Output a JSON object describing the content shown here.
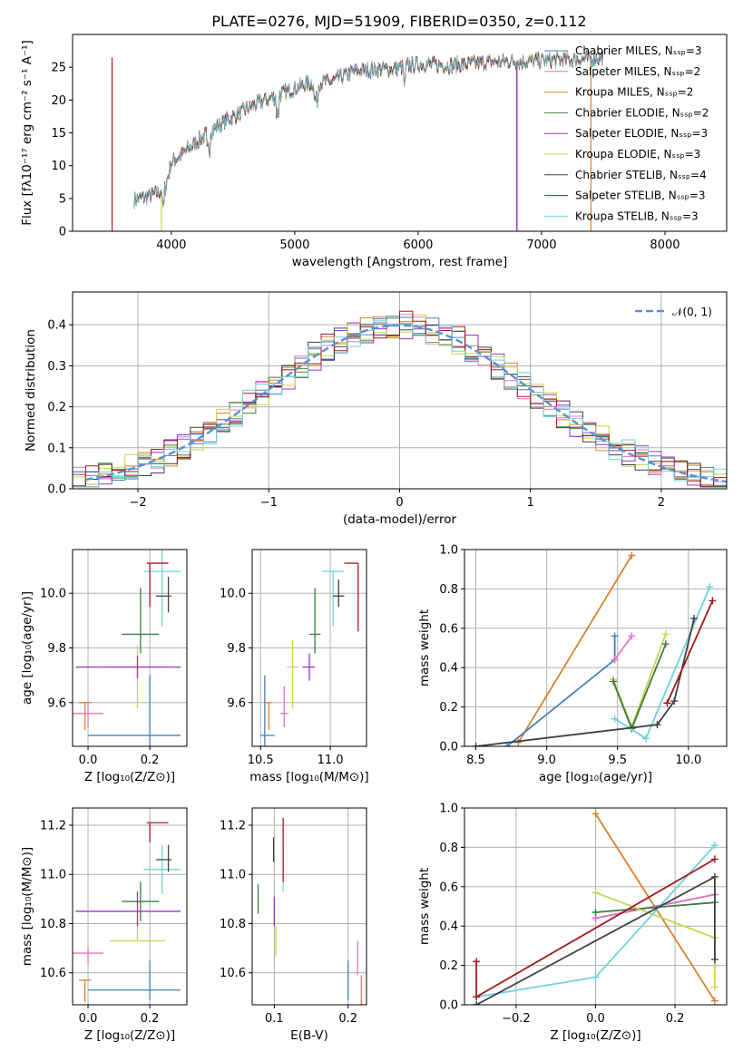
{
  "title": "PLATE=0276, MJD=51909, FIBERID=0350, z=0.112",
  "chart_data": [
    {
      "id": "spectrum",
      "type": "line",
      "xlabel": "wavelength [Angstrom, rest frame]",
      "ylabel": "Flux [fλ10⁻¹⁷ erg cm⁻² s⁻¹ A⁻¹]",
      "xlim": [
        3200,
        8500
      ],
      "ylim": [
        0,
        30
      ],
      "xticks": [
        4000,
        5000,
        6000,
        7000,
        8000
      ],
      "yticks": [
        0,
        5,
        10,
        15,
        20,
        25
      ],
      "grid": false,
      "legend_position": "top-right",
      "continuum_x": [
        3700,
        3850,
        3950,
        4000,
        4100,
        4300,
        4500,
        4700,
        4900,
        5100,
        5300,
        5500,
        5800,
        6000,
        6300,
        6600,
        7000,
        7300,
        7500
      ],
      "continuum_y": [
        4.8,
        5.5,
        6.5,
        10.5,
        12.0,
        15.0,
        17.5,
        19.5,
        21.0,
        22.5,
        22.8,
        24.5,
        24.8,
        25.5,
        25.3,
        25.8,
        26.0,
        26.2,
        26.5
      ],
      "series": [
        {
          "name": "Chabrier MILES, N_SSP=3",
          "color": "#4682b4",
          "edge_drop": null
        },
        {
          "name": "Salpeter MILES, N_SSP=2",
          "color": "#e377c2",
          "edge_drop": null
        },
        {
          "name": "Kroupa MILES, N_SSP=2",
          "color": "#d9822b",
          "edge_drop": 7400
        },
        {
          "name": "Chabrier ELODIE, N_SSP=2",
          "color": "#3a7d44",
          "edge_drop": 6800
        },
        {
          "name": "Salpeter ELODIE, N_SSP=3",
          "color": "#9932cc",
          "edge_drop": 6800
        },
        {
          "name": "Kroupa ELODIE, N_SSP=3",
          "color": "#c8d44e",
          "edge_drop": 3920
        },
        {
          "name": "Chabrier STELIB, N_SSP=4",
          "color": "#404040",
          "edge_drop": null
        },
        {
          "name": "Salpeter STELIB, N_SSP=3",
          "color": "#a31b1b",
          "edge_drop": 3520
        },
        {
          "name": "Kroupa STELIB, N_SSP=3",
          "color": "#6fd2dc",
          "edge_drop": null
        }
      ]
    },
    {
      "id": "residuals",
      "type": "histogram",
      "xlabel": "(data-model)/error",
      "ylabel": "Normed distribution",
      "xlim": [
        -2.5,
        2.5
      ],
      "ylim": [
        0,
        0.48
      ],
      "xticks": [
        -2,
        -1,
        0,
        1,
        2
      ],
      "yticks": [
        0.0,
        0.1,
        0.2,
        0.3,
        0.4
      ],
      "grid": true,
      "legend_position": "top-right",
      "reference_curve": {
        "name": "𝒩(0, 1)",
        "mean": 0,
        "sigma": 1,
        "color": "#5a8fd6"
      },
      "series_colors": [
        "#4682b4",
        "#e377c2",
        "#d9822b",
        "#3a7d44",
        "#9932cc",
        "#c8d44e",
        "#404040",
        "#a31b1b",
        "#6fd2dc"
      ]
    },
    {
      "id": "age-vs-Z",
      "type": "errorbar",
      "xlabel": "Z [log₁₀(Z/Z⊙)]",
      "ylabel": "age  [log₁₀(age/yr)]",
      "xlim": [
        -0.05,
        0.32
      ],
      "ylim": [
        9.44,
        10.16
      ],
      "xticks": [
        0.0,
        0.2
      ],
      "yticks": [
        9.6,
        9.8,
        10.0
      ],
      "points": [
        {
          "color": "#d9822b",
          "x": -0.01,
          "xerr": [
            0.02,
            0.02
          ],
          "y": 9.6,
          "yerr": [
            0.1,
            0.0
          ]
        },
        {
          "color": "#e377c2",
          "x": 0.0,
          "xerr": [
            0.05,
            0.05
          ],
          "y": 9.56,
          "yerr": [
            0.05,
            0.04
          ]
        },
        {
          "color": "#4682b4",
          "x": 0.2,
          "xerr": [
            0.2,
            0.1
          ],
          "y": 9.48,
          "yerr": [
            0.05,
            0.22
          ]
        },
        {
          "color": "#c8d44e",
          "x": 0.16,
          "xerr": [
            0.09,
            0.09
          ],
          "y": 9.73,
          "yerr": [
            0.15,
            0.08
          ]
        },
        {
          "color": "#9932cc",
          "x": 0.16,
          "xerr": [
            0.2,
            0.14
          ],
          "y": 9.73,
          "yerr": [
            0.04,
            0.04
          ]
        },
        {
          "color": "#3a7d44",
          "x": 0.17,
          "xerr": [
            0.06,
            0.06
          ],
          "y": 9.85,
          "yerr": [
            0.07,
            0.17
          ]
        },
        {
          "color": "#6fd2dc",
          "x": 0.24,
          "xerr": [
            0.06,
            0.06
          ],
          "y": 10.08,
          "yerr": [
            0.2,
            0.08
          ]
        },
        {
          "color": "#404040",
          "x": 0.26,
          "xerr": [
            0.04,
            0.01
          ],
          "y": 9.99,
          "yerr": [
            0.06,
            0.07
          ]
        },
        {
          "color": "#a31b1b",
          "x": 0.2,
          "xerr": [
            0.01,
            0.06
          ],
          "y": 10.11,
          "yerr": [
            0.16,
            0.0
          ]
        }
      ]
    },
    {
      "id": "age-vs-mass",
      "type": "errorbar",
      "xlabel": "mass [log₁₀(M/M⊙)]",
      "ylabel": "",
      "xlim": [
        10.44,
        11.26
      ],
      "ylim": [
        9.44,
        10.16
      ],
      "xticks": [
        10.5,
        11.0
      ],
      "yticks": [
        9.6,
        9.8,
        10.0
      ],
      "points": [
        {
          "color": "#d9822b",
          "x": 10.56,
          "xerr": [
            0.03,
            0.02
          ],
          "y": 9.6,
          "yerr": [
            0.1,
            0.0
          ]
        },
        {
          "color": "#4682b4",
          "x": 10.53,
          "xerr": [
            0.03,
            0.07
          ],
          "y": 9.48,
          "yerr": [
            0.04,
            0.22
          ]
        },
        {
          "color": "#e377c2",
          "x": 10.67,
          "xerr": [
            0.03,
            0.03
          ],
          "y": 9.56,
          "yerr": [
            0.05,
            0.1
          ]
        },
        {
          "color": "#c8d44e",
          "x": 10.73,
          "xerr": [
            0.04,
            0.04
          ],
          "y": 9.73,
          "yerr": [
            0.15,
            0.1
          ]
        },
        {
          "color": "#9932cc",
          "x": 10.85,
          "xerr": [
            0.05,
            0.04
          ],
          "y": 9.73,
          "yerr": [
            0.05,
            0.05
          ]
        },
        {
          "color": "#3a7d44",
          "x": 10.89,
          "xerr": [
            0.04,
            0.04
          ],
          "y": 9.85,
          "yerr": [
            0.07,
            0.17
          ]
        },
        {
          "color": "#6fd2dc",
          "x": 11.02,
          "xerr": [
            0.08,
            0.08
          ],
          "y": 10.08,
          "yerr": [
            0.2,
            0.0
          ]
        },
        {
          "color": "#404040",
          "x": 11.06,
          "xerr": [
            0.04,
            0.04
          ],
          "y": 9.99,
          "yerr": [
            0.04,
            0.06
          ]
        },
        {
          "color": "#a31b1b",
          "x": 11.2,
          "xerr": [
            0.1,
            0.0
          ],
          "y": 10.11,
          "yerr": [
            0.25,
            0.0
          ]
        }
      ]
    },
    {
      "id": "weight-vs-age",
      "type": "line",
      "xlabel": "age  [log₁₀(age/yr)]",
      "ylabel": "mass weight",
      "xlim": [
        8.42,
        10.27
      ],
      "ylim": [
        0,
        1
      ],
      "xticks": [
        8.5,
        9.0,
        9.5,
        10.0
      ],
      "yticks": [
        0.0,
        0.2,
        0.4,
        0.6,
        0.8,
        1.0
      ],
      "grid": true,
      "series": [
        {
          "color": "#d9822b",
          "x": [
            8.8,
            9.6
          ],
          "y": [
            0.02,
            0.97
          ]
        },
        {
          "color": "#4682b4",
          "x": [
            8.72,
            9.48,
            9.48
          ],
          "y": [
            0.0,
            0.44,
            0.56
          ]
        },
        {
          "color": "#e377c2",
          "x": [
            9.48,
            9.6
          ],
          "y": [
            0.44,
            0.56
          ]
        },
        {
          "color": "#c8d44e",
          "x": [
            9.47,
            9.6,
            9.84
          ],
          "y": [
            0.34,
            0.1,
            0.57
          ]
        },
        {
          "color": "#3a7d44",
          "x": [
            9.47,
            9.6,
            9.84
          ],
          "y": [
            0.33,
            0.09,
            0.52
          ]
        },
        {
          "color": "#6fd2dc",
          "x": [
            9.48,
            9.7,
            10.15
          ],
          "y": [
            0.14,
            0.04,
            0.81
          ]
        },
        {
          "color": "#404040",
          "x": [
            8.5,
            9.78,
            9.9,
            10.04
          ],
          "y": [
            0.0,
            0.11,
            0.23,
            0.65
          ]
        },
        {
          "color": "#a31b1b",
          "x": [
            9.85,
            10.17
          ],
          "y": [
            0.22,
            0.74
          ]
        }
      ]
    },
    {
      "id": "mass-vs-Z",
      "type": "errorbar",
      "xlabel": "Z [log₁₀(Z/Z⊙)]",
      "ylabel": "mass [log₁₀(M/M⊙)]",
      "xlim": [
        -0.05,
        0.32
      ],
      "ylim": [
        10.47,
        11.27
      ],
      "xticks": [
        0.0,
        0.2
      ],
      "yticks": [
        10.6,
        10.8,
        11.0,
        11.2
      ],
      "points": [
        {
          "color": "#d9822b",
          "x": -0.01,
          "xerr": [
            0.02,
            0.02
          ],
          "y": 10.57,
          "yerr": [
            0.09,
            0.0
          ]
        },
        {
          "color": "#e377c2",
          "x": 0.0,
          "xerr": [
            0.05,
            0.05
          ],
          "y": 10.68,
          "yerr": [
            0.04,
            0.02
          ]
        },
        {
          "color": "#4682b4",
          "x": 0.2,
          "xerr": [
            0.2,
            0.1
          ],
          "y": 10.53,
          "yerr": [
            0.04,
            0.12
          ]
        },
        {
          "color": "#c8d44e",
          "x": 0.16,
          "xerr": [
            0.09,
            0.09
          ],
          "y": 10.73,
          "yerr": [
            0.0,
            0.08
          ]
        },
        {
          "color": "#9932cc",
          "x": 0.16,
          "xerr": [
            0.2,
            0.14
          ],
          "y": 10.85,
          "yerr": [
            0.06,
            0.08
          ]
        },
        {
          "color": "#3a7d44",
          "x": 0.17,
          "xerr": [
            0.06,
            0.06
          ],
          "y": 10.89,
          "yerr": [
            0.08,
            0.08
          ]
        },
        {
          "color": "#6fd2dc",
          "x": 0.24,
          "xerr": [
            0.06,
            0.06
          ],
          "y": 11.02,
          "yerr": [
            0.1,
            0.1
          ]
        },
        {
          "color": "#404040",
          "x": 0.26,
          "xerr": [
            0.04,
            0.01
          ],
          "y": 11.06,
          "yerr": [
            0.05,
            0.06
          ]
        },
        {
          "color": "#a31b1b",
          "x": 0.2,
          "xerr": [
            0.01,
            0.06
          ],
          "y": 11.21,
          "yerr": [
            0.08,
            0.0
          ]
        }
      ]
    },
    {
      "id": "mass-vs-EBV",
      "type": "errorbar",
      "xlabel": "E(B-V)",
      "ylabel": "",
      "xlim": [
        0.07,
        0.225
      ],
      "ylim": [
        10.47,
        11.27
      ],
      "xticks": [
        0.1,
        0.2
      ],
      "yticks": [
        10.6,
        10.8,
        11.0,
        11.2
      ],
      "points": [
        {
          "color": "#3a7d44",
          "x": 0.078,
          "xerr": [
            0,
            0
          ],
          "y": 10.89,
          "yerr": [
            0.05,
            0.07
          ]
        },
        {
          "color": "#9932cc",
          "x": 0.1,
          "xerr": [
            0,
            0
          ],
          "y": 10.85,
          "yerr": [
            0.06,
            0.06
          ]
        },
        {
          "color": "#c8d44e",
          "x": 0.102,
          "xerr": [
            0,
            0
          ],
          "y": 10.73,
          "yerr": [
            0.06,
            0.06
          ]
        },
        {
          "color": "#404040",
          "x": 0.099,
          "xerr": [
            0,
            0
          ],
          "y": 11.1,
          "yerr": [
            0.05,
            0.05
          ]
        },
        {
          "color": "#6fd2dc",
          "x": 0.112,
          "xerr": [
            0,
            0
          ],
          "y": 11.02,
          "yerr": [
            0.09,
            0.09
          ]
        },
        {
          "color": "#a31b1b",
          "x": 0.112,
          "xerr": [
            0,
            0
          ],
          "y": 11.1,
          "yerr": [
            0.13,
            0.13
          ]
        },
        {
          "color": "#4682b4",
          "x": 0.2,
          "xerr": [
            0,
            0
          ],
          "y": 10.57,
          "yerr": [
            0.08,
            0.08
          ]
        },
        {
          "color": "#e377c2",
          "x": 0.213,
          "xerr": [
            0,
            0
          ],
          "y": 10.66,
          "yerr": [
            0.07,
            0.07
          ]
        },
        {
          "color": "#d9822b",
          "x": 0.218,
          "xerr": [
            0,
            0
          ],
          "y": 10.53,
          "yerr": [
            0.06,
            0.06
          ]
        }
      ]
    },
    {
      "id": "weight-vs-Z",
      "type": "line",
      "xlabel": "Z [log₁₀(Z/Z⊙)]",
      "ylabel": "mass weight",
      "xlim": [
        -0.33,
        0.33
      ],
      "ylim": [
        0,
        1
      ],
      "xticks": [
        -0.2,
        0.0,
        0.2
      ],
      "yticks": [
        0.0,
        0.2,
        0.4,
        0.6,
        0.8,
        1.0
      ],
      "grid": true,
      "series": [
        {
          "color": "#d9822b",
          "x": [
            0.0,
            0.3
          ],
          "y": [
            0.97,
            0.02
          ]
        },
        {
          "color": "#4682b4",
          "x": [
            0.0,
            0.3
          ],
          "y": [
            0.44,
            0.56
          ]
        },
        {
          "color": "#e377c2",
          "x": [
            0.0,
            0.3
          ],
          "y": [
            0.44,
            0.56
          ]
        },
        {
          "color": "#3a7d44",
          "x": [
            0.0,
            0.3
          ],
          "y": [
            0.47,
            0.52
          ]
        },
        {
          "color": "#c8d44e",
          "x": [
            0.0,
            0.3,
            0.3
          ],
          "y": [
            0.57,
            0.34,
            0.09
          ]
        },
        {
          "color": "#6fd2dc",
          "x": [
            -0.3,
            0.0,
            0.3
          ],
          "y": [
            0.04,
            0.14,
            0.81
          ]
        },
        {
          "color": "#404040",
          "x": [
            -0.3,
            0.3,
            0.3
          ],
          "y": [
            0.0,
            0.65,
            0.23
          ]
        },
        {
          "color": "#a31b1b",
          "x": [
            -0.3,
            -0.3,
            0.3
          ],
          "y": [
            0.22,
            0.04,
            0.74
          ]
        }
      ]
    }
  ]
}
